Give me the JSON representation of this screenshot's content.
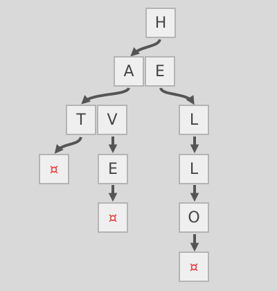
{
  "diagram": {
    "end_marker": "¤",
    "nodes": [
      {
        "id": "n-h",
        "letters": [
          "H"
        ]
      },
      {
        "id": "n-ae",
        "letters": [
          "A",
          "E"
        ]
      },
      {
        "id": "n-tv",
        "letters": [
          "T",
          "V"
        ]
      },
      {
        "id": "n-t-end",
        "letters": [
          "¤"
        ]
      },
      {
        "id": "n-e2",
        "letters": [
          "E"
        ]
      },
      {
        "id": "n-v-end",
        "letters": [
          "¤"
        ]
      },
      {
        "id": "n-l1",
        "letters": [
          "L"
        ]
      },
      {
        "id": "n-l2",
        "letters": [
          "L"
        ]
      },
      {
        "id": "n-o",
        "letters": [
          "O"
        ]
      },
      {
        "id": "n-o-end",
        "letters": [
          "¤"
        ]
      }
    ],
    "edges": [
      {
        "from": "H",
        "to": "A"
      },
      {
        "from": "A",
        "to": "T"
      },
      {
        "from": "E",
        "to": "L"
      },
      {
        "from": "T",
        "to": "¤"
      },
      {
        "from": "V",
        "to": "E"
      },
      {
        "from": "E",
        "to": "¤"
      },
      {
        "from": "L",
        "to": "L"
      },
      {
        "from": "L",
        "to": "O"
      },
      {
        "from": "O",
        "to": "¤"
      }
    ],
    "colors": {
      "background": "#d9d9d9",
      "cell_fill": "#efefef",
      "cell_border": "#b4b4b4",
      "letter": "#444444",
      "end_marker": "#e83a3a",
      "arrow": "#555555"
    }
  }
}
